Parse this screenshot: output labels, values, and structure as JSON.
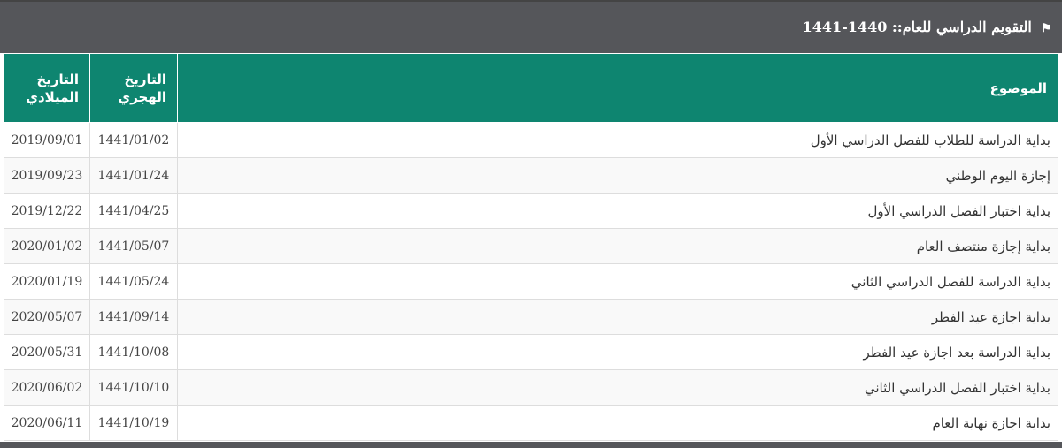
{
  "header": {
    "icon": "flag-icon",
    "title": "التقويم الدراسي للعام:: 1440-1441"
  },
  "table": {
    "columns": [
      "الموضوع",
      "التاريخ الهجري",
      "التاريخ الميلادي"
    ],
    "rows": [
      {
        "subject": "بداية الدراسة للطلاب للفصل الدراسي الأول",
        "hijri": "1441/01/02",
        "gregorian": "2019/09/01"
      },
      {
        "subject": "إجازة اليوم الوطني",
        "hijri": "1441/01/24",
        "gregorian": "2019/09/23"
      },
      {
        "subject": "بداية اختبار الفصل الدراسي الأول",
        "hijri": "1441/04/25",
        "gregorian": "2019/12/22"
      },
      {
        "subject": "بداية إجازة منتصف العام",
        "hijri": "1441/05/07",
        "gregorian": "2020/01/02"
      },
      {
        "subject": "بداية الدراسة للفصل الدراسي الثاني",
        "hijri": "1441/05/24",
        "gregorian": "2020/01/19"
      },
      {
        "subject": "بداية اجازة عيد الفطر",
        "hijri": "1441/09/14",
        "gregorian": "2020/05/07"
      },
      {
        "subject": "بداية الدراسة بعد اجازة عيد الفطر",
        "hijri": "1441/10/08",
        "gregorian": "2020/05/31"
      },
      {
        "subject": "بداية اختبار الفصل الدراسي الثاني",
        "hijri": "1441/10/10",
        "gregorian": "2020/06/02"
      },
      {
        "subject": "بداية اجازة نهاية العام",
        "hijri": "1441/10/19",
        "gregorian": "2020/06/11"
      }
    ]
  },
  "colors": {
    "header_bar": "#55565a",
    "table_header": "#0e8570"
  }
}
